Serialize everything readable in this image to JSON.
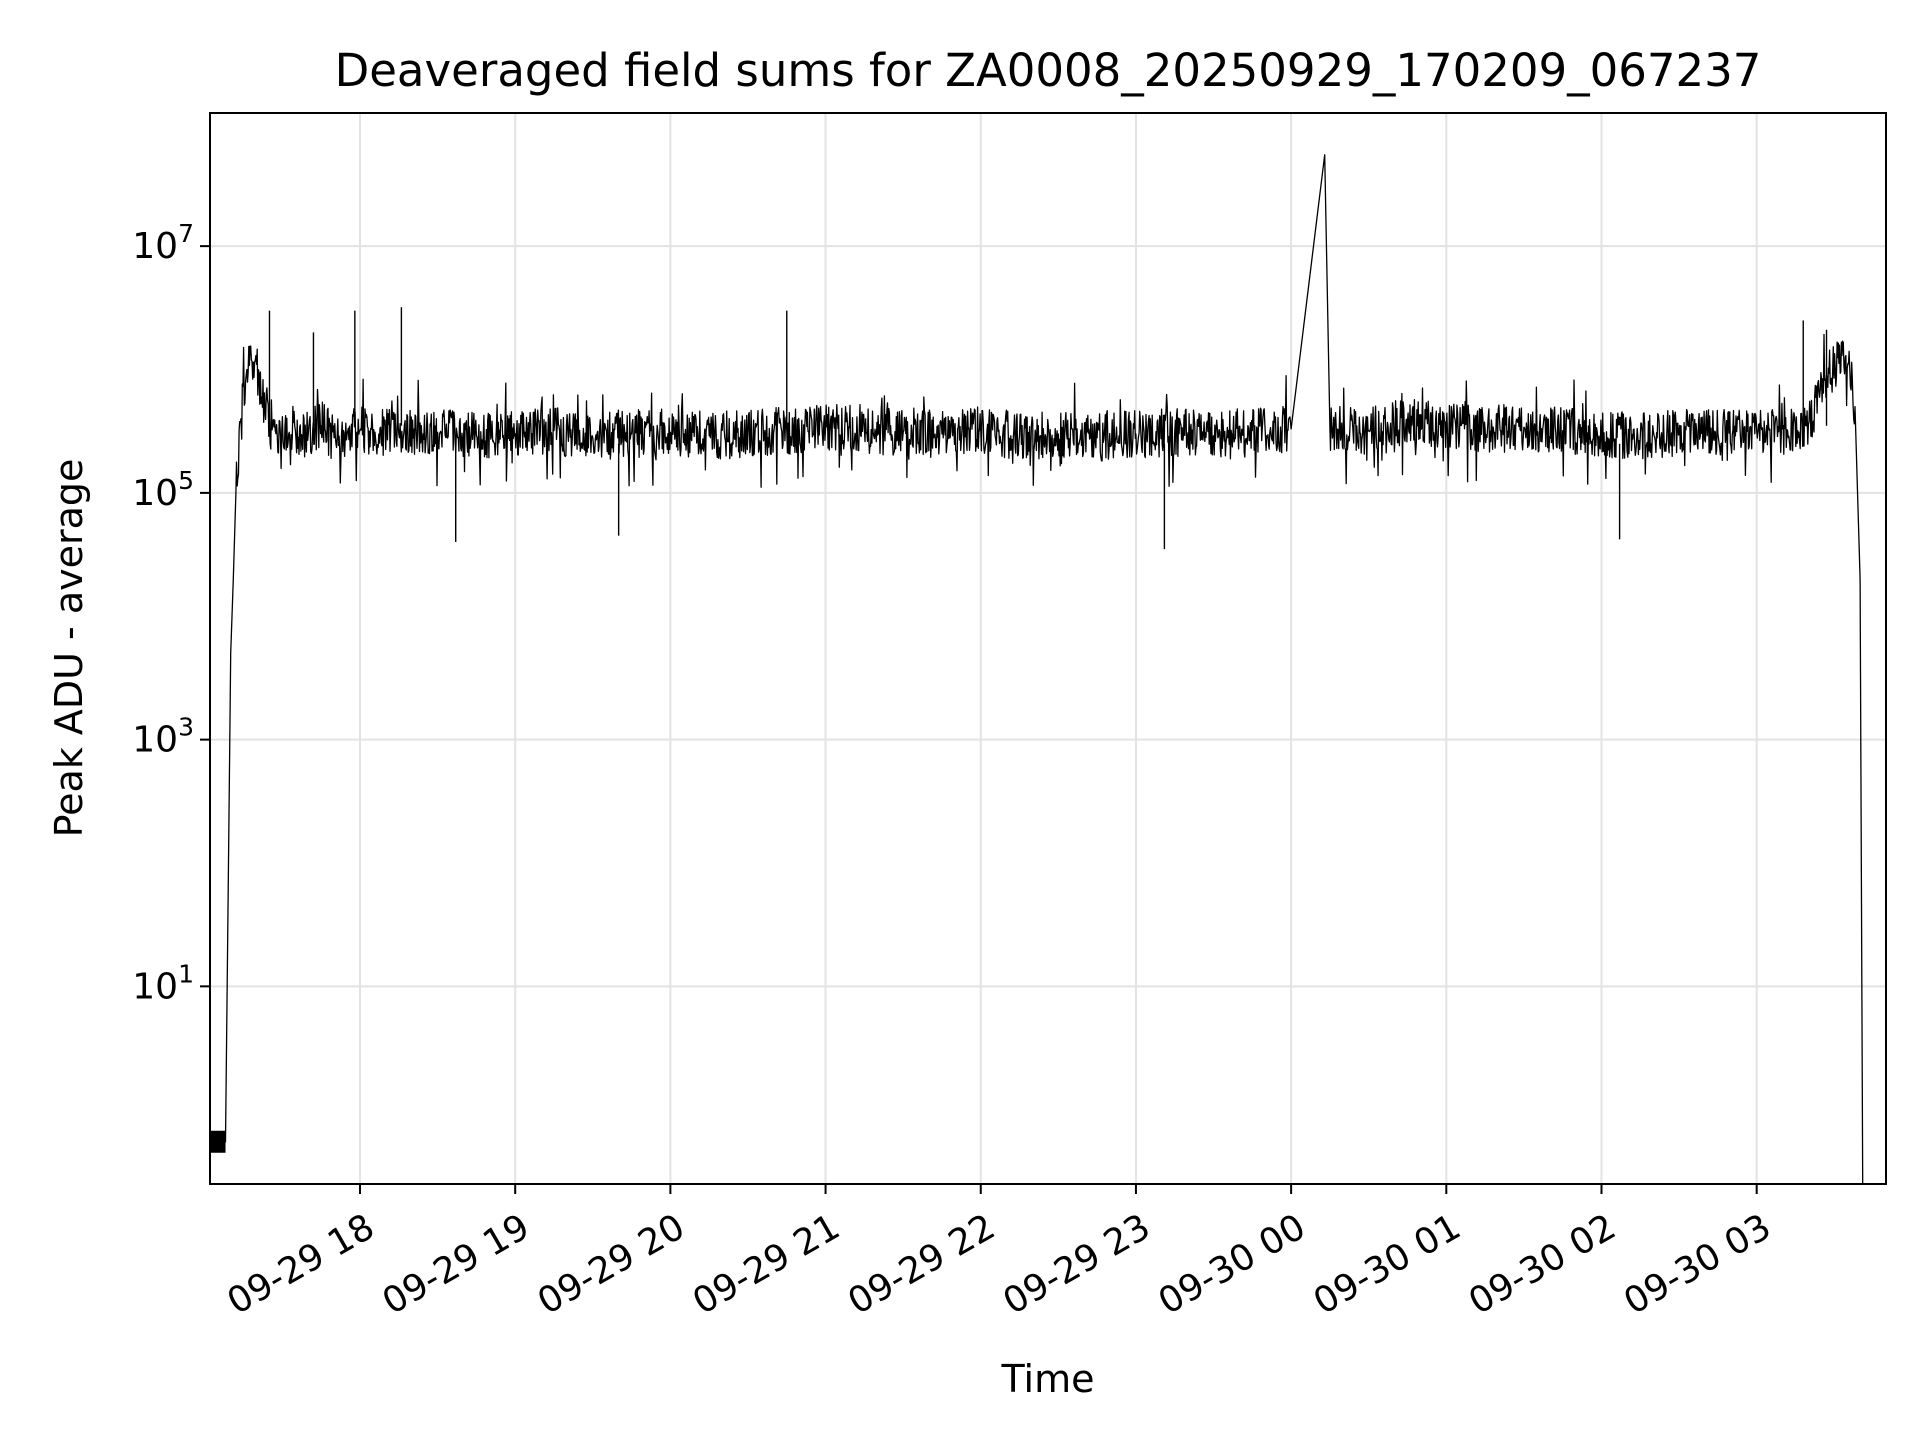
{
  "chart_data": {
    "type": "line",
    "title": "Deaveraged field sums for ZA0008_20250929_170209_067237",
    "xlabel": "Time",
    "ylabel": "Peak ADU - average",
    "yscale": "log",
    "ylim": [
      0.25,
      120000000
    ],
    "xlim": [
      "09-29 17:02",
      "09-30 03:50"
    ],
    "grid": true,
    "line_color": "#000000",
    "x_ticks": [
      {
        "value": "09-29 18:00",
        "label": "09-29 18"
      },
      {
        "value": "09-29 19:00",
        "label": "09-29 19"
      },
      {
        "value": "09-29 20:00",
        "label": "09-29 20"
      },
      {
        "value": "09-29 21:00",
        "label": "09-29 21"
      },
      {
        "value": "09-29 22:00",
        "label": "09-29 22"
      },
      {
        "value": "09-29 23:00",
        "label": "09-29 23"
      },
      {
        "value": "09-30 00:00",
        "label": "09-30 00"
      },
      {
        "value": "09-30 01:00",
        "label": "09-30 01"
      },
      {
        "value": "09-30 02:00",
        "label": "09-30 02"
      },
      {
        "value": "09-30 03:00",
        "label": "09-30 03"
      }
    ],
    "y_ticks": [
      {
        "value": 10,
        "base": "10",
        "exp": "1"
      },
      {
        "value": 1000,
        "base": "10",
        "exp": "3"
      },
      {
        "value": 100000,
        "base": "10",
        "exp": "5"
      },
      {
        "value": 10000000,
        "base": "10",
        "exp": "7"
      }
    ],
    "series": [
      {
        "x": [
          "09-29 17:02",
          "09-29 17:08",
          "09-29 17:09",
          "09-29 17:10",
          "09-29 17:11",
          "09-29 17:12",
          "09-29 17:14",
          "09-29 17:16",
          "09-29 17:18",
          "09-29 17:20",
          "09-29 17:22",
          "09-29 17:25",
          "09-29 17:28",
          "09-29 17:31",
          "09-29 17:35",
          "09-29 17:40",
          "09-29 17:45",
          "09-29 17:50",
          "09-29 17:55",
          "09-29 18:00",
          "09-29 18:15",
          "09-29 18:30",
          "09-29 18:45",
          "09-29 19:00",
          "09-29 19:15",
          "09-29 19:30",
          "09-29 19:45",
          "09-29 20:00",
          "09-29 20:15",
          "09-29 20:30",
          "09-29 20:45",
          "09-29 21:00",
          "09-29 21:15",
          "09-29 21:30",
          "09-29 21:45",
          "09-29 22:00",
          "09-29 22:15",
          "09-29 22:30",
          "09-29 22:45",
          "09-29 23:00",
          "09-29 23:15",
          "09-29 23:30",
          "09-29 23:45",
          "09-30 00:00",
          "09-30 00:13",
          "09-30 00:15",
          "09-30 00:30",
          "09-30 00:45",
          "09-30 01:00",
          "09-30 01:15",
          "09-30 01:30",
          "09-30 01:45",
          "09-30 02:00",
          "09-30 02:15",
          "09-30 02:30",
          "09-30 02:45",
          "09-30 03:00",
          "09-30 03:10",
          "09-30 03:20",
          "09-30 03:27",
          "09-30 03:33",
          "09-30 03:36",
          "09-30 03:38",
          "09-30 03:40",
          "09-30 03:41"
        ],
        "y": [
          0.55,
          0.55,
          50,
          5000,
          20000,
          100000,
          400000,
          900000,
          1200000,
          1100000,
          600000,
          400000,
          300000,
          350000,
          320000,
          300000,
          350000,
          280000,
          300000,
          320000,
          300000,
          310000,
          290000,
          300000,
          320000,
          280000,
          300000,
          310000,
          290000,
          300000,
          320000,
          340000,
          330000,
          310000,
          300000,
          320000,
          290000,
          300000,
          280000,
          300000,
          310000,
          290000,
          320000,
          330000,
          55000000,
          340000,
          320000,
          380000,
          360000,
          330000,
          340000,
          320000,
          300000,
          290000,
          310000,
          300000,
          320000,
          330000,
          360000,
          900000,
          1300000,
          1000000,
          500000,
          20000,
          0.25
        ],
        "spikes": [
          {
            "x": "09-29 17:25",
            "y": 3000000
          },
          {
            "x": "09-29 17:42",
            "y": 2000000
          },
          {
            "x": "09-29 17:58",
            "y": 3000000
          },
          {
            "x": "09-29 18:16",
            "y": 3200000
          },
          {
            "x": "09-29 18:37",
            "y": 40000
          },
          {
            "x": "09-29 19:40",
            "y": 45000
          },
          {
            "x": "09-29 20:45",
            "y": 3000000
          },
          {
            "x": "09-29 23:11",
            "y": 35000
          },
          {
            "x": "09-30 02:07",
            "y": 42000
          },
          {
            "x": "09-30 03:18",
            "y": 2500000
          },
          {
            "x": "09-30 03:27",
            "y": 2100000
          }
        ]
      }
    ]
  }
}
